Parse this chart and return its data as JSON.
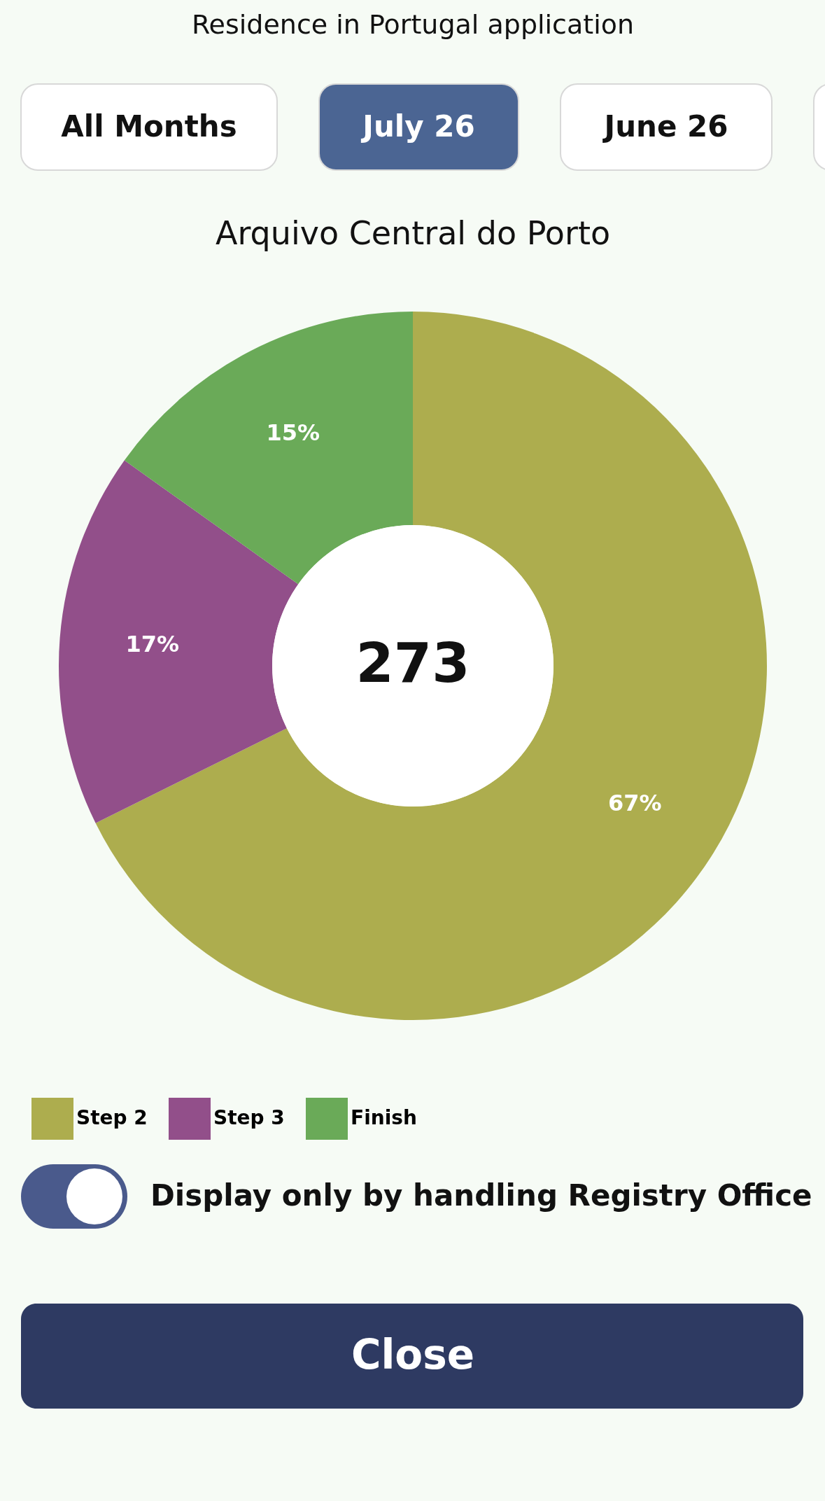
{
  "chart_data": {
    "type": "donut",
    "title": "Residence in Portugal application",
    "subtitle": "Arquivo Central do Porto",
    "categories": [
      "Step 2",
      "Step 3",
      "Finish"
    ],
    "values": [
      67,
      17,
      15
    ],
    "colors": [
      "#adad4e",
      "#924f8a",
      "#6aaa58"
    ],
    "value_labels": [
      "67%",
      "17%",
      "15%"
    ],
    "legend": "bottom",
    "annotations": [
      "273",
      "All Months",
      "July 26",
      "June 26",
      "Display only by handling Registry Office",
      "Close"
    ]
  }
}
